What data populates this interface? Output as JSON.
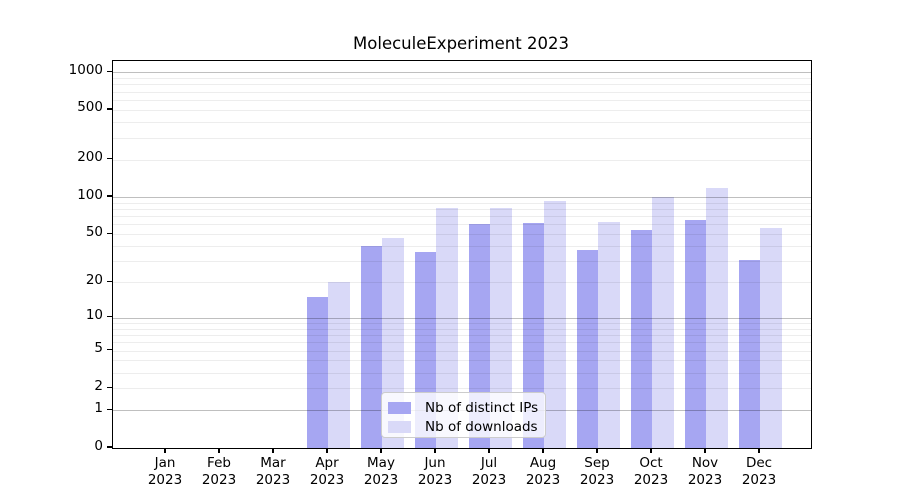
{
  "chart_data": {
    "type": "bar",
    "title": "MoleculeExperiment 2023",
    "year_label": "2023",
    "categories": [
      "Jan",
      "Feb",
      "Mar",
      "Apr",
      "May",
      "Jun",
      "Jul",
      "Aug",
      "Sep",
      "Oct",
      "Nov",
      "Dec"
    ],
    "series": [
      {
        "name": "Nb of distinct IPs",
        "color": "#a6a6f2",
        "values": [
          0,
          0,
          0,
          15,
          40,
          36,
          60,
          62,
          37,
          54,
          65,
          31
        ]
      },
      {
        "name": "Nb of downloads",
        "color": "#d9d9f8",
        "values": [
          0,
          0,
          0,
          20,
          47,
          81,
          82,
          93,
          63,
          100,
          119,
          56
        ]
      }
    ],
    "yscale": "log1p",
    "yticks": [
      0,
      1,
      2,
      5,
      10,
      20,
      50,
      100,
      200,
      500,
      1000
    ],
    "ylim": [
      0,
      1232
    ],
    "xlabel": "",
    "ylabel": "",
    "grid": true,
    "grid_on_top": true,
    "legend_position": "lower center"
  },
  "style": {
    "major_grid_color": "rgba(0,0,0,0.25)",
    "minor_grid_color": "rgba(0,0,0,0.07)",
    "axis_color": "#000000",
    "background": "#ffffff"
  }
}
